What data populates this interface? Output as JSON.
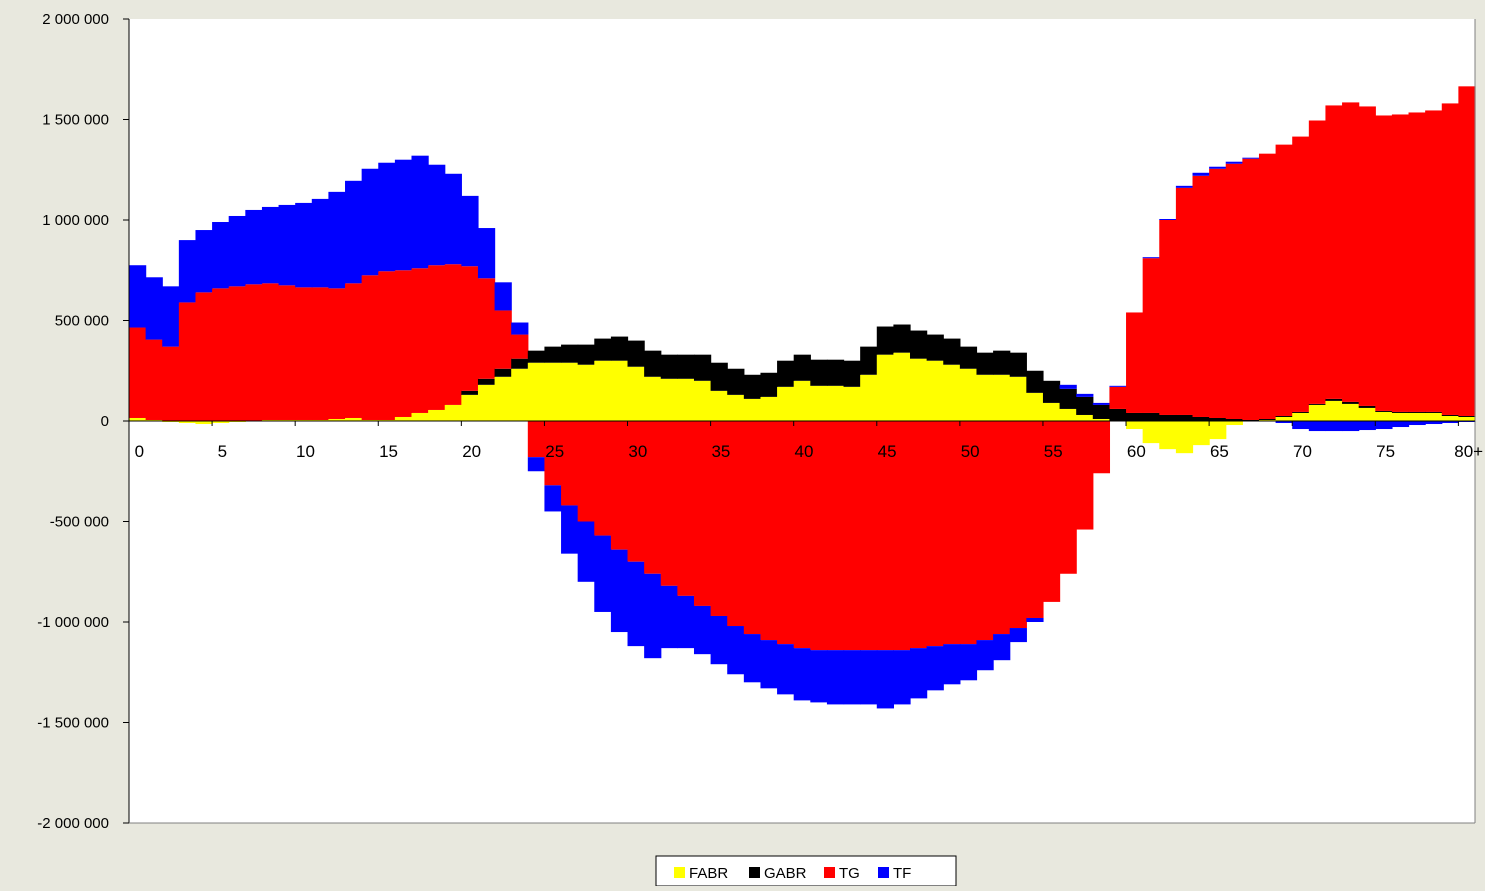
{
  "chart_data": {
    "type": "bar",
    "stacked": true,
    "x_ticks": [
      "0",
      "5",
      "10",
      "15",
      "20",
      "25",
      "30",
      "35",
      "40",
      "45",
      "50",
      "55",
      "60",
      "65",
      "70",
      "75",
      "80+"
    ],
    "x_categories": [
      "0",
      "1",
      "2",
      "3",
      "4",
      "5",
      "6",
      "7",
      "8",
      "9",
      "10",
      "11",
      "12",
      "13",
      "14",
      "15",
      "16",
      "17",
      "18",
      "19",
      "20",
      "21",
      "22",
      "23",
      "24",
      "25",
      "26",
      "27",
      "28",
      "29",
      "30",
      "31",
      "32",
      "33",
      "34",
      "35",
      "36",
      "37",
      "38",
      "39",
      "40",
      "41",
      "42",
      "43",
      "44",
      "45",
      "46",
      "47",
      "48",
      "49",
      "50",
      "51",
      "52",
      "53",
      "54",
      "55",
      "56",
      "57",
      "58",
      "59",
      "60",
      "61",
      "62",
      "63",
      "64",
      "65",
      "66",
      "67",
      "68",
      "69",
      "70",
      "71",
      "72",
      "73",
      "74",
      "75",
      "76",
      "77",
      "78",
      "79",
      "80+"
    ],
    "ylim": [
      -2000000,
      2000000
    ],
    "y_ticks": [
      2000000,
      1500000,
      1000000,
      500000,
      0,
      -500000,
      -1000000,
      -1500000,
      -2000000
    ],
    "y_tick_labels": [
      "2 000 000",
      "1 500 000",
      "1 000 000",
      "500 000",
      "0",
      "-500 000",
      "-1 000 000",
      "-1 500 000",
      "-2 000 000"
    ],
    "legend_position": "bottom",
    "grid": false,
    "series": [
      {
        "name": "FABR",
        "color": "#ffff00",
        "values": [
          15000,
          5000,
          -5000,
          -10000,
          -15000,
          -10000,
          -5000,
          0,
          5000,
          5000,
          5000,
          5000,
          10000,
          15000,
          5000,
          5000,
          20000,
          40000,
          55000,
          80000,
          130000,
          180000,
          220000,
          260000,
          290000,
          290000,
          290000,
          280000,
          300000,
          300000,
          270000,
          220000,
          210000,
          210000,
          200000,
          150000,
          130000,
          110000,
          120000,
          170000,
          200000,
          175000,
          175000,
          170000,
          230000,
          330000,
          340000,
          310000,
          300000,
          280000,
          260000,
          230000,
          230000,
          220000,
          140000,
          90000,
          60000,
          30000,
          10000,
          0,
          -40000,
          -110000,
          -140000,
          -160000,
          -120000,
          -90000,
          -20000,
          0,
          5000,
          20000,
          40000,
          80000,
          100000,
          85000,
          65000,
          45000,
          40000,
          40000,
          40000,
          25000,
          20000
        ]
      },
      {
        "name": "GABR",
        "color": "#000000",
        "values": [
          0,
          0,
          0,
          0,
          0,
          0,
          0,
          0,
          0,
          0,
          0,
          0,
          0,
          0,
          0,
          0,
          0,
          0,
          0,
          0,
          20000,
          30000,
          40000,
          50000,
          60000,
          80000,
          90000,
          100000,
          110000,
          120000,
          130000,
          130000,
          120000,
          120000,
          130000,
          140000,
          130000,
          120000,
          120000,
          130000,
          130000,
          130000,
          130000,
          130000,
          140000,
          140000,
          140000,
          140000,
          130000,
          130000,
          110000,
          110000,
          120000,
          120000,
          110000,
          110000,
          100000,
          90000,
          70000,
          60000,
          40000,
          40000,
          30000,
          30000,
          20000,
          15000,
          10000,
          5000,
          5000,
          5000,
          5000,
          5000,
          10000,
          10000,
          10000,
          5000,
          5000,
          5000,
          5000,
          5000,
          5000
        ]
      },
      {
        "name": "TG",
        "color": "#ff0000",
        "values": [
          450000,
          400000,
          370000,
          590000,
          640000,
          660000,
          670000,
          680000,
          680000,
          670000,
          660000,
          660000,
          650000,
          670000,
          720000,
          740000,
          730000,
          720000,
          720000,
          700000,
          620000,
          500000,
          290000,
          120000,
          -180000,
          -320000,
          -420000,
          -500000,
          -570000,
          -640000,
          -700000,
          -760000,
          -820000,
          -870000,
          -920000,
          -970000,
          -1020000,
          -1060000,
          -1090000,
          -1110000,
          -1130000,
          -1140000,
          -1140000,
          -1140000,
          -1140000,
          -1140000,
          -1140000,
          -1130000,
          -1120000,
          -1110000,
          -1110000,
          -1090000,
          -1060000,
          -1030000,
          -980000,
          -900000,
          -760000,
          -540000,
          -260000,
          110000,
          500000,
          770000,
          970000,
          1130000,
          1200000,
          1240000,
          1270000,
          1300000,
          1320000,
          1350000,
          1370000,
          1410000,
          1460000,
          1490000,
          1490000,
          1470000,
          1480000,
          1490000,
          1500000,
          1550000,
          1640000
        ]
      },
      {
        "name": "TF",
        "color": "#0000ff",
        "values": [
          310000,
          310000,
          300000,
          310000,
          310000,
          330000,
          350000,
          370000,
          380000,
          400000,
          420000,
          440000,
          480000,
          510000,
          530000,
          540000,
          550000,
          560000,
          500000,
          450000,
          350000,
          250000,
          140000,
          60000,
          -70000,
          -130000,
          -240000,
          -300000,
          -380000,
          -410000,
          -420000,
          -420000,
          -310000,
          -260000,
          -240000,
          -240000,
          -240000,
          -240000,
          -240000,
          -250000,
          -260000,
          -260000,
          -270000,
          -270000,
          -270000,
          -290000,
          -270000,
          -250000,
          -220000,
          -200000,
          -180000,
          -150000,
          -130000,
          -70000,
          -20000,
          0,
          20000,
          15000,
          10000,
          5000,
          0,
          5000,
          5000,
          10000,
          15000,
          10000,
          10000,
          5000,
          0,
          -10000,
          -40000,
          -50000,
          -50000,
          -50000,
          -45000,
          -40000,
          -30000,
          -20000,
          -15000,
          -10000,
          -5000
        ]
      }
    ]
  }
}
